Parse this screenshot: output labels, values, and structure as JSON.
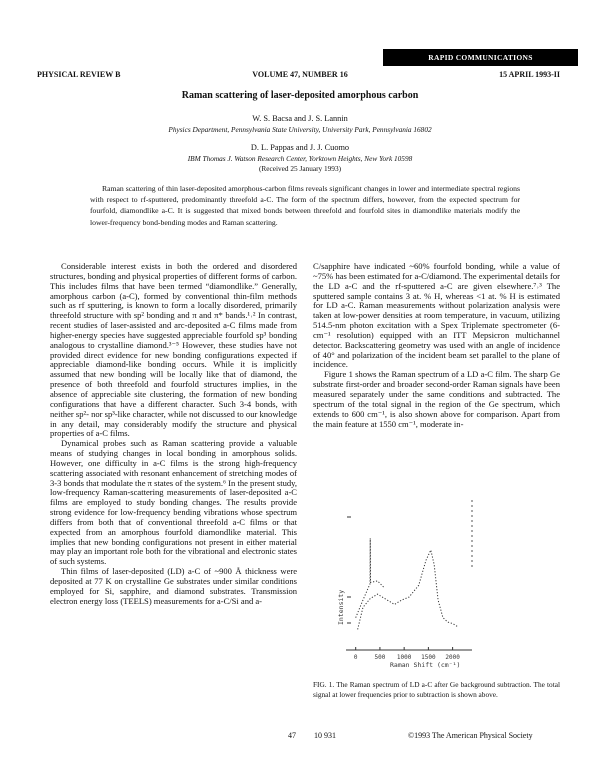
{
  "banner": "RAPID COMMUNICATIONS",
  "header": {
    "journal": "PHYSICAL REVIEW B",
    "volume": "VOLUME 47, NUMBER 16",
    "date": "15 APRIL 1993-II"
  },
  "title": "Raman scattering of laser-deposited amorphous carbon",
  "authors": [
    {
      "names": "W. S. Bacsa and J. S. Lannin",
      "affiliation": "Physics Department, Pennsylvania State University, University Park, Pennsylvania 16802"
    },
    {
      "names": "D. L. Pappas and J. J. Cuomo",
      "affiliation": "IBM Thomas J. Watson Research Center, Yorktown Heights, New York 10598"
    }
  ],
  "received": "(Received 25 January 1993)",
  "abstract": "Raman scattering of thin laser-deposited amorphous-carbon films reveals significant changes in lower and intermediate spectral regions with respect to rf-sputtered, predominantly threefold a-C. The form of the spectrum differs, however, from the expected spectrum for fourfold, diamondlike a-C. It is suggested that mixed bonds between threefold and fourfold sites in diamondlike materials modify the lower-frequency bond-bending modes and Raman scattering.",
  "left_column": [
    "Considerable interest exists in both the ordered and disordered structures, bonding and physical properties of different forms of carbon. This includes films that have been termed “diamondlike.” Generally, amorphous carbon (a-C), formed by conventional thin-film methods such as rf sputtering, is known to form a locally disordered, primarily threefold structure with sp² bonding and π and π* bands.¹˒² In contrast, recent studies of laser-assisted and arc-deposited a-C films made from higher-energy species have suggested appreciable fourfold sp³ bonding analogous to crystalline diamond.³⁻⁵ However, these studies have not provided direct evidence for new bonding configurations expected if appreciable diamond-like bonding occurs. While it is implicitly assumed that new bonding will be locally like that of diamond, the presence of both threefold and fourfold structures implies, in the absence of appreciable site clustering, the formation of new bonding configurations that have a different character. Such 3-4 bonds, with neither sp²- nor sp³-like character, while not discussed to our knowledge in any detail, may considerably modify the structure and physical properties of a-C films.",
    "Dynamical probes such as Raman scattering provide a valuable means of studying changes in local bonding in amorphous solids. However, one difficulty in a-C films is the strong high-frequency scattering associated with resonant enhancement of stretching modes of 3-3 bonds that modulate the π states of the system.⁶ In the present study, low-frequency Raman-scattering measurements of laser-deposited a-C films are employed to study bonding changes. The results provide strong evidence for low-frequency bending vibrations whose spectrum differs from both that of conventional threefold a-C films or that expected from an amorphous fourfold diamondlike material. This implies that new bonding configurations not present in either material may play an important role both for the vibrational and electronic states of such systems.",
    "Thin films of laser-deposited (LD) a-C of ~900 Å thickness were deposited at 77 K on crystalline Ge substrates under similar conditions employed for Si, sapphire, and diamond substrates. Transmission electron energy loss (TEELS) measurements for a-C/Si and a-"
  ],
  "right_column": [
    "C/sapphire have indicated ~60% fourfold bonding, while a value of ~75% has been estimated for a-C/diamond. The experimental details for the LD a-C and the rf-sputtered a-C are given elsewhere.⁷˒³ The sputtered sample contains 3 at. % H, whereas <1 at. % H is estimated for LD a-C. Raman measurements without polarization analysis were taken at low-power densities at room temperature, in vacuum, utilizing 514.5-nm photon excitation with a Spex Triplemate spectrometer (6-cm⁻¹ resolution) equipped with an ITT Mepsicron multichannel detector. Backscattering geometry was used with an angle of incidence of 40° and polarization of the incident beam set parallel to the plane of incidence.",
    "Figure 1 shows the Raman spectrum of a LD a-C film. The sharp Ge substrate first-order and broader second-order Raman signals have been measured separately under the same conditions and subtracted. The spectrum of the total signal in the region of the Ge spectrum, which extends to 600 cm⁻¹, is also shown above for comparison. Apart from the main feature at 1550 cm⁻¹, moderate in-"
  ],
  "caption": "FIG. 1. The Raman spectrum of LD a-C after Ge background subtraction. The total signal at lower frequencies prior to subtraction is shown above.",
  "footer": {
    "volume": "47",
    "page": "10 931",
    "copyright": "©1993 The American Physical Society"
  },
  "chart_data": {
    "type": "line",
    "xlabel": "Raman Shift (cm⁻¹)",
    "ylabel": "Intensity",
    "xlim": [
      -200,
      2400
    ],
    "ylim": [
      0,
      10
    ],
    "x_ticks": [
      "0",
      "500",
      "1000",
      "1500",
      "2000"
    ],
    "x_tick_values": [
      0,
      500,
      1000,
      1500,
      2000
    ],
    "series": [
      {
        "style": "dotted",
        "x": [
          40,
          150,
          300,
          450,
          600,
          800,
          950,
          1100,
          1300,
          1450,
          1550,
          1620,
          1700,
          1800,
          1900,
          2000,
          2100
        ],
        "y": [
          1.4,
          2.9,
          3.5,
          3.8,
          3.5,
          3.1,
          3.4,
          3.6,
          4.4,
          6.1,
          6.8,
          5.8,
          3.4,
          2.2,
          1.9,
          1.8,
          1.6
        ]
      },
      {
        "style": "dotted",
        "x": [
          0,
          150,
          295,
          300,
          305,
          450,
          600
        ],
        "y": [
          2.2,
          3.4,
          4.5,
          7.6,
          4.6,
          4.7,
          4.2
        ]
      }
    ]
  }
}
